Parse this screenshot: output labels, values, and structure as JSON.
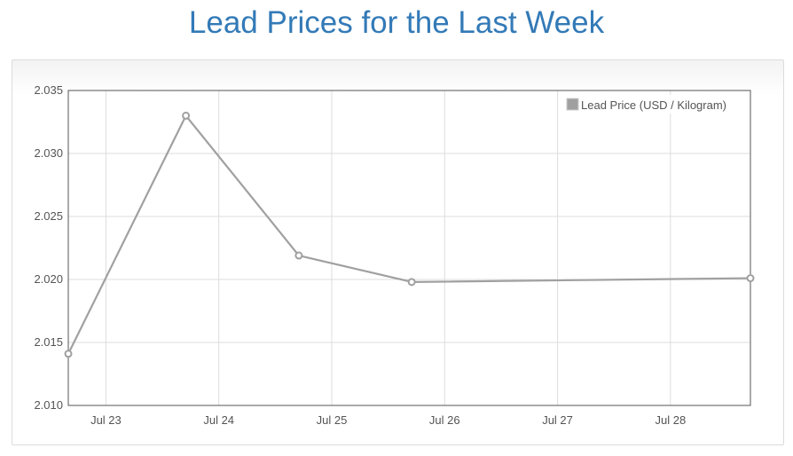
{
  "page": {
    "title": "Lead Prices for the Last Week"
  },
  "colors": {
    "title": "#337ab7",
    "series": "#a0a0a0",
    "grid": "#dddddd",
    "axis": "#545454"
  },
  "chart_data": {
    "type": "line",
    "title": "",
    "xlabel": "",
    "ylabel": "",
    "xlim": [
      "2023-07-22 16:00",
      "2023-07-28 17:00"
    ],
    "ylim": [
      2.01,
      2.035
    ],
    "y_ticks": [
      "2.010",
      "2.015",
      "2.020",
      "2.025",
      "2.030",
      "2.035"
    ],
    "x_ticks": [
      {
        "label": "Jul 23",
        "date": "2023-07-23"
      },
      {
        "label": "Jul 24",
        "date": "2023-07-24"
      },
      {
        "label": "Jul 25",
        "date": "2023-07-25"
      },
      {
        "label": "Jul 26",
        "date": "2023-07-26"
      },
      {
        "label": "Jul 27",
        "date": "2023-07-27"
      },
      {
        "label": "Jul 28",
        "date": "2023-07-28"
      }
    ],
    "grid": true,
    "legend": {
      "placement": "top-right"
    },
    "series": [
      {
        "name": "Lead Price (USD / Kilogram)",
        "color": "#a0a0a0",
        "points": [
          {
            "x": "2023-07-22 16:00",
            "y": 2.0141
          },
          {
            "x": "2023-07-23 17:00",
            "y": 2.033
          },
          {
            "x": "2023-07-24 17:00",
            "y": 2.0219
          },
          {
            "x": "2023-07-25 17:00",
            "y": 2.0198
          },
          {
            "x": "2023-07-28 17:00",
            "y": 2.0201
          }
        ]
      }
    ]
  }
}
